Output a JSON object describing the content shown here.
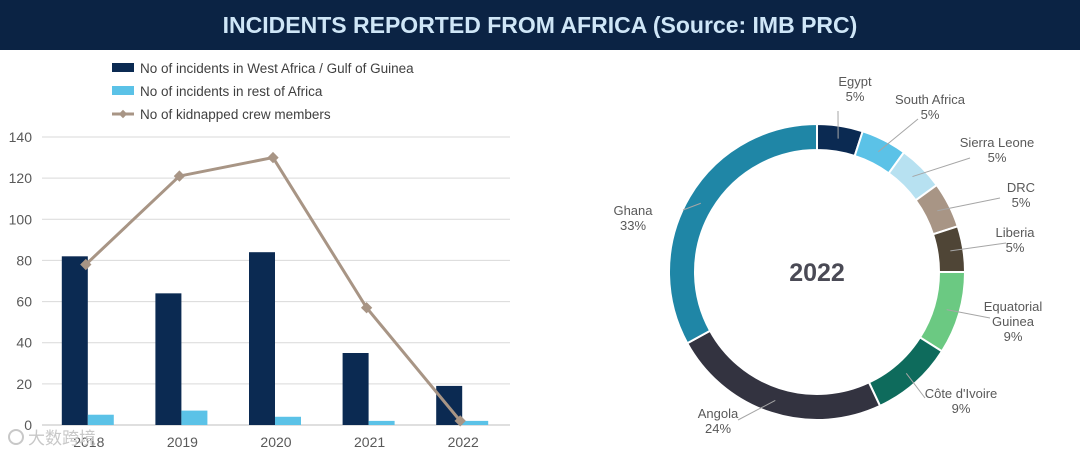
{
  "header": {
    "title": "INCIDENTS REPORTED FROM AFRICA (Source: IMB PRC)"
  },
  "colors": {
    "title_bg": "#0b2344",
    "west_africa": "#0b2a52",
    "rest_africa": "#5bc2e7",
    "kidnapped": "#a89585"
  },
  "chart_data": [
    {
      "type": "bar",
      "categories": [
        "2018",
        "2019",
        "2020",
        "2021",
        "2022"
      ],
      "series": [
        {
          "name": "No of incidents in West Africa / Gulf of Guinea",
          "kind": "bar",
          "values": [
            82,
            64,
            84,
            35,
            19
          ],
          "color": "#0b2a52"
        },
        {
          "name": "No of incidents in rest of Africa",
          "kind": "bar",
          "values": [
            5,
            7,
            4,
            2,
            2
          ],
          "color": "#5bc2e7"
        },
        {
          "name": "No of kidnapped crew members",
          "kind": "line",
          "values": [
            78,
            121,
            130,
            57,
            2
          ],
          "color": "#a89585"
        }
      ],
      "ylim": [
        0,
        140
      ],
      "yticks": [
        0,
        20,
        40,
        60,
        80,
        100,
        120,
        140
      ],
      "grid": true,
      "legend": "top"
    },
    {
      "type": "pie",
      "variant": "donut",
      "center_label": "2022",
      "slices": [
        {
          "label": "Egypt",
          "value": 5,
          "pct": "5%",
          "color": "#0b2a52"
        },
        {
          "label": "South Africa",
          "value": 5,
          "pct": "5%",
          "color": "#5bc2e7"
        },
        {
          "label": "Sierra Leone",
          "value": 5,
          "pct": "5%",
          "color": "#b7e1f1"
        },
        {
          "label": "DRC",
          "value": 5,
          "pct": "5%",
          "color": "#a89585"
        },
        {
          "label": "Liberia",
          "value": 5,
          "pct": "5%",
          "color": "#4f4536"
        },
        {
          "label": "Equatorial Guinea",
          "lines": [
            "Equatorial",
            "Guinea"
          ],
          "value": 9,
          "pct": "9%",
          "color": "#6bc982"
        },
        {
          "label": "Côte d'Ivoire",
          "value": 9,
          "pct": "9%",
          "color": "#0e6b5c"
        },
        {
          "label": "Angola",
          "value": 24,
          "pct": "24%",
          "color": "#333340"
        },
        {
          "label": "Ghana",
          "value": 33,
          "pct": "33%",
          "color": "#1f86a6"
        }
      ]
    }
  ],
  "watermark": "大数跨境"
}
